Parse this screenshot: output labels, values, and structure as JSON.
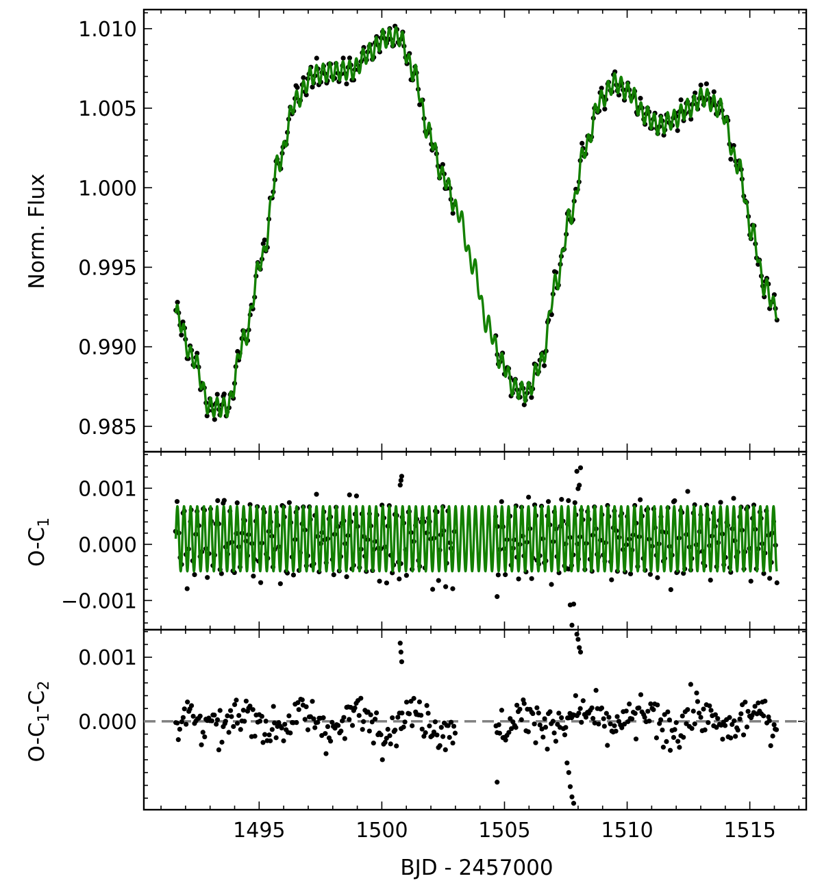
{
  "chart_data": {
    "type": "scatter",
    "shared_x": {
      "label": "BJD - 2457000",
      "lim": [
        1490.3,
        1517.3
      ],
      "major_ticks": [
        1495,
        1500,
        1505,
        1510,
        1515
      ],
      "minor_step": 1
    },
    "colors": {
      "points": "#000000",
      "model": "#138000",
      "zero_line": "#808080"
    },
    "data_gap": [
      1503.0,
      1504.6
    ],
    "time_range": [
      1491.6,
      1516.1
    ],
    "grid": false,
    "panels": [
      {
        "id": "flux",
        "ylabel": "Norm. Flux",
        "ylim": [
          0.9834,
          1.0112
        ],
        "yticks": [
          0.985,
          0.99,
          0.995,
          1.0,
          1.005,
          1.01
        ],
        "ytick_labels": [
          "0.985",
          "0.990",
          "0.995",
          "1.000",
          "1.005",
          "1.010"
        ],
        "minor_step": 0.001,
        "trend_knots": {
          "x": [
            1491.6,
            1492.3,
            1493.0,
            1493.7,
            1494.4,
            1495.1,
            1495.8,
            1496.5,
            1497.2,
            1498.0,
            1498.8,
            1499.5,
            1500.1,
            1500.7,
            1501.3,
            1501.9,
            1502.5,
            1503.1,
            1503.7,
            1504.3,
            1504.9,
            1505.4,
            1505.9,
            1506.5,
            1507.1,
            1507.7,
            1508.3,
            1508.9,
            1509.5,
            1510.1,
            1510.7,
            1511.3,
            1511.9,
            1512.5,
            1513.1,
            1513.8,
            1514.5,
            1515.1,
            1515.6,
            1516.1
          ],
          "y": [
            0.9921,
            0.9893,
            0.9862,
            0.9862,
            0.9905,
            0.9955,
            1.0016,
            1.0055,
            1.0071,
            1.0073,
            1.0074,
            1.0085,
            1.0094,
            1.0095,
            1.0073,
            1.0035,
            1.0007,
            0.9985,
            0.9952,
            0.9914,
            0.989,
            0.9874,
            0.9871,
            0.989,
            0.994,
            0.9983,
            1.0025,
            1.0055,
            1.0066,
            1.006,
            1.0046,
            1.0039,
            1.0043,
            1.005,
            1.0057,
            1.005,
            1.0015,
            0.9972,
            0.9938,
            0.9923
          ]
        },
        "oscillation": {
          "amplitude": 0.0006,
          "period_days": 0.27
        },
        "n_points": 420,
        "point_scatter": 0.00028
      },
      {
        "id": "resid1",
        "ylabel": "O-C_1",
        "ylim": [
          -0.00152,
          0.00165
        ],
        "yticks": [
          -0.001,
          0.0,
          0.001
        ],
        "ytick_labels": [
          "−0.001",
          "0.000",
          "0.001"
        ],
        "minor_step": 0.0002,
        "oscillation": {
          "offset": 0.0001,
          "amplitude": 0.00058,
          "period_days": 0.27
        },
        "n_points": 420,
        "point_scatter": 0.00022
      },
      {
        "id": "resid2",
        "ylabel": "O-C_1-C_2",
        "ylim": [
          -0.00138,
          0.00143
        ],
        "yticks": [
          0.0,
          0.001
        ],
        "ytick_labels": [
          "0.000",
          "0.001"
        ],
        "minor_step": 0.0002,
        "zero_line": 0.0,
        "n_points": 420,
        "point_scatter": 0.00022,
        "outliers": [
          {
            "x": 1500.75,
            "y": 0.00122
          },
          {
            "x": 1500.78,
            "y": 0.00108
          },
          {
            "x": 1500.81,
            "y": 0.00093
          },
          {
            "x": 1507.55,
            "y": -0.00065
          },
          {
            "x": 1507.62,
            "y": -0.0008
          },
          {
            "x": 1507.68,
            "y": -0.00102
          },
          {
            "x": 1507.75,
            "y": -0.00118
          },
          {
            "x": 1507.82,
            "y": -0.00128
          },
          {
            "x": 1507.95,
            "y": 0.00136
          },
          {
            "x": 1508.0,
            "y": 0.00128
          },
          {
            "x": 1508.05,
            "y": 0.00115
          },
          {
            "x": 1508.1,
            "y": 0.00108
          },
          {
            "x": 1504.7,
            "y": -0.00095
          }
        ]
      }
    ]
  }
}
